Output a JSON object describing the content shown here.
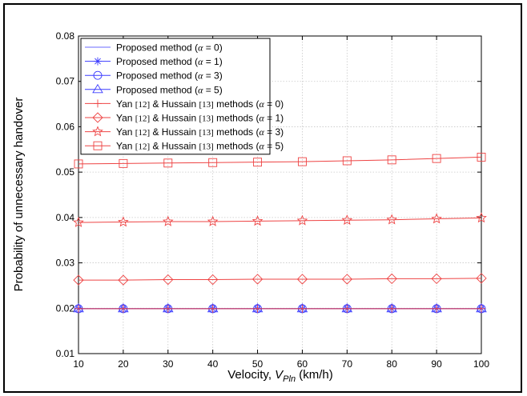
{
  "chart_data": {
    "type": "line",
    "xlabel": "Velocity, V_Pln (km/h)",
    "ylabel": "Probability of unnecessary handover",
    "x": [
      10,
      20,
      30,
      40,
      50,
      60,
      70,
      80,
      90,
      100
    ],
    "xlim": [
      10,
      100
    ],
    "ylim": [
      0.01,
      0.08
    ],
    "xticks": [
      10,
      20,
      30,
      40,
      50,
      60,
      70,
      80,
      90,
      100
    ],
    "xtick_labels": [
      "10",
      "20",
      "30",
      "40",
      "50",
      "60",
      "70",
      "80",
      "90",
      "100"
    ],
    "yticks": [
      0.01,
      0.02,
      0.03,
      0.04,
      0.05,
      0.06,
      0.07,
      0.08
    ],
    "ytick_labels": [
      "0.01",
      "0.02",
      "0.03",
      "0.04",
      "0.05",
      "0.06",
      "0.07",
      "0.08"
    ],
    "grid": true,
    "legend_position": "top-left",
    "series": [
      {
        "name": "Proposed method (α = 0)",
        "color": "#6b6bff",
        "marker": "none",
        "values": [
          0.0199,
          0.0199,
          0.0199,
          0.0199,
          0.0199,
          0.0199,
          0.0199,
          0.0199,
          0.0199,
          0.0199
        ]
      },
      {
        "name": "Proposed method (α = 1)",
        "color": "#3b3bff",
        "marker": "asterisk",
        "values": [
          0.0199,
          0.0199,
          0.0199,
          0.0199,
          0.0199,
          0.0199,
          0.0199,
          0.0199,
          0.0199,
          0.0199
        ]
      },
      {
        "name": "Proposed method (α = 3)",
        "color": "#3b3bff",
        "marker": "circle",
        "values": [
          0.0199,
          0.0199,
          0.0199,
          0.0199,
          0.0199,
          0.0199,
          0.0199,
          0.0199,
          0.0199,
          0.0199
        ]
      },
      {
        "name": "Proposed method (α = 5)",
        "color": "#3b3bff",
        "marker": "triangle",
        "values": [
          0.0199,
          0.0199,
          0.0199,
          0.0199,
          0.0199,
          0.0199,
          0.0199,
          0.0199,
          0.0199,
          0.0199
        ]
      },
      {
        "name": "Yan [12] & Hussain [13] methods (α = 0)",
        "color": "#ee4444",
        "marker": "plus",
        "values": [
          0.0199,
          0.0199,
          0.0199,
          0.0199,
          0.0199,
          0.0199,
          0.0199,
          0.0199,
          0.0199,
          0.0199
        ]
      },
      {
        "name": "Yan [12] & Hussain [13] methods (α = 1)",
        "color": "#ee4444",
        "marker": "diamond",
        "values": [
          0.0262,
          0.0262,
          0.0263,
          0.0263,
          0.0264,
          0.0264,
          0.0264,
          0.0265,
          0.0265,
          0.0266
        ]
      },
      {
        "name": "Yan [12] & Hussain [13] methods (α = 3)",
        "color": "#ee4444",
        "marker": "star",
        "values": [
          0.0389,
          0.039,
          0.0391,
          0.0391,
          0.0392,
          0.0393,
          0.0394,
          0.0395,
          0.0397,
          0.0399
        ]
      },
      {
        "name": "Yan [12] & Hussain [13] methods (α = 5)",
        "color": "#ee4444",
        "marker": "square",
        "values": [
          0.0518,
          0.0519,
          0.052,
          0.0521,
          0.0522,
          0.0523,
          0.0525,
          0.0527,
          0.053,
          0.0533
        ]
      }
    ]
  },
  "legend": {
    "entries": [
      {
        "prefix": "Proposed method (",
        "sym": "α",
        "suffix": " = 0)"
      },
      {
        "prefix": "Proposed method (",
        "sym": "α",
        "suffix": " = 1)"
      },
      {
        "prefix": "Proposed method (",
        "sym": "α",
        "suffix": " = 3)"
      },
      {
        "prefix": "Proposed method (",
        "sym": "α",
        "suffix": " = 5)"
      },
      {
        "prefix": "Yan ",
        "ref1": "[12]",
        "mid": " & Hussain ",
        "ref2": "[13]",
        "post": " methods (",
        "sym": "α",
        "suffix": " = 0)"
      },
      {
        "prefix": "Yan ",
        "ref1": "[12]",
        "mid": " & Hussain ",
        "ref2": "[13]",
        "post": " methods (",
        "sym": "α",
        "suffix": " = 1)"
      },
      {
        "prefix": "Yan ",
        "ref1": "[12]",
        "mid": " & Hussain ",
        "ref2": "[13]",
        "post": " methods (",
        "sym": "α",
        "suffix": " = 3)"
      },
      {
        "prefix": "Yan ",
        "ref1": "[12]",
        "mid": " & Hussain ",
        "ref2": "[13]",
        "post": " methods (",
        "sym": "α",
        "suffix": " = 5)"
      }
    ]
  },
  "xlabel_parts": {
    "main": "Velocity, ",
    "var": "V",
    "sub": "Pln",
    "unit": "  (km/h)"
  }
}
